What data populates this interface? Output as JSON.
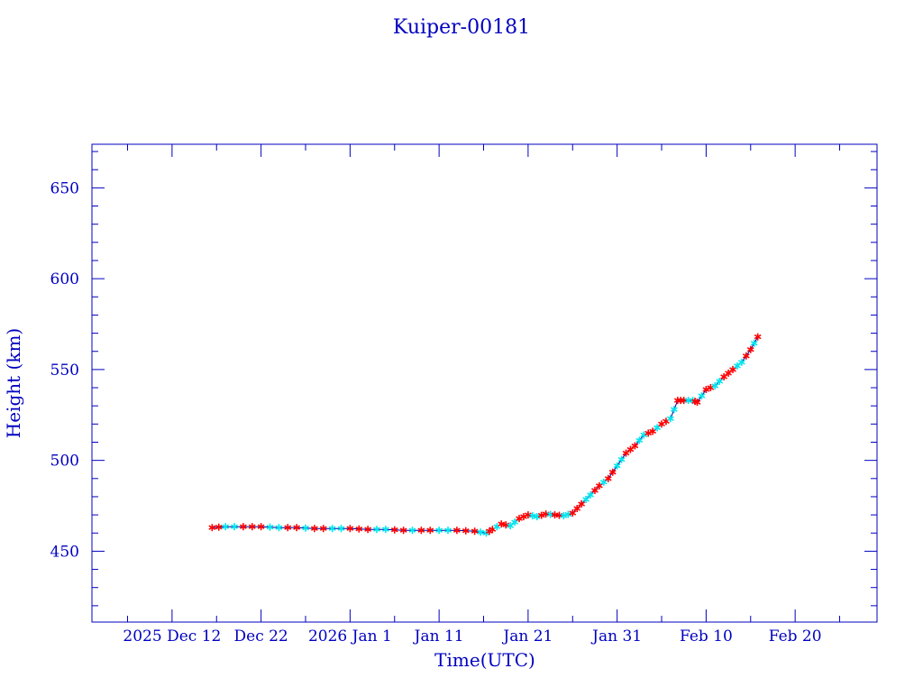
{
  "chart_data": {
    "type": "scatter",
    "title": "Kuiper-00181",
    "xlabel": "Time(UTC)",
    "ylabel": "Height (km)",
    "x_units": "days since 2025-12-12 00:00 UTC",
    "xlim": [
      -9,
      79.2
    ],
    "ylim": [
      411,
      674
    ],
    "x_ticks": [
      {
        "value": 0,
        "label": "2025 Dec 12"
      },
      {
        "value": 10,
        "label": "Dec 22"
      },
      {
        "value": 20,
        "label": "2026 Jan  1"
      },
      {
        "value": 30,
        "label": "Jan 11"
      },
      {
        "value": 40,
        "label": "Jan 21"
      },
      {
        "value": 50,
        "label": "Jan 31"
      },
      {
        "value": 60,
        "label": "Feb 10"
      },
      {
        "value": 70,
        "label": "Feb 20"
      }
    ],
    "y_ticks": [
      {
        "value": 450,
        "label": "450"
      },
      {
        "value": 500,
        "label": "500"
      },
      {
        "value": 550,
        "label": "550"
      },
      {
        "value": 600,
        "label": "600"
      },
      {
        "value": 650,
        "label": "650"
      }
    ],
    "grid": false,
    "colors": {
      "axis": "#0000c0",
      "line": "#0000a0",
      "marker_primary": "#ff0000",
      "marker_secondary": "#00e5ee"
    },
    "series": [
      {
        "name": "height",
        "points": [
          [
            4.5,
            463
          ],
          [
            6,
            463.5
          ],
          [
            8,
            463.5
          ],
          [
            10,
            463.5
          ],
          [
            12,
            463
          ],
          [
            14,
            463
          ],
          [
            16,
            462.5
          ],
          [
            18,
            462.5
          ],
          [
            20,
            462.5
          ],
          [
            22,
            462
          ],
          [
            24,
            462
          ],
          [
            26,
            461.5
          ],
          [
            28,
            461.5
          ],
          [
            30,
            461.5
          ],
          [
            32,
            461.5
          ],
          [
            34,
            461
          ],
          [
            35.3,
            460
          ],
          [
            36,
            462
          ],
          [
            37,
            465
          ],
          [
            38,
            464
          ],
          [
            39,
            468
          ],
          [
            40,
            470
          ],
          [
            41,
            469
          ],
          [
            42,
            470.5
          ],
          [
            43,
            470
          ],
          [
            44,
            469.5
          ],
          [
            45,
            471
          ],
          [
            46,
            476
          ],
          [
            47,
            481
          ],
          [
            48,
            486
          ],
          [
            49,
            490
          ],
          [
            50,
            497
          ],
          [
            51,
            504
          ],
          [
            52,
            508
          ],
          [
            53,
            514
          ],
          [
            54,
            516
          ],
          [
            55,
            520
          ],
          [
            56,
            523
          ],
          [
            56.8,
            533
          ],
          [
            57.5,
            533
          ],
          [
            58.5,
            533
          ],
          [
            59,
            532
          ],
          [
            60,
            539
          ],
          [
            61,
            541
          ],
          [
            62,
            546
          ],
          [
            63,
            550
          ],
          [
            64,
            554
          ],
          [
            65,
            561
          ],
          [
            65.8,
            568
          ]
        ]
      }
    ]
  }
}
